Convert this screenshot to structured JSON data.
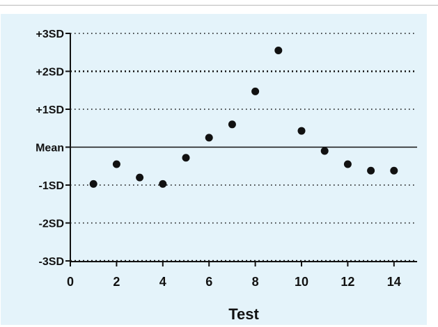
{
  "chart_data": {
    "type": "scatter",
    "title": "",
    "xlabel": "Test",
    "ylabel": "",
    "xlim": [
      0,
      15
    ],
    "ylim": [
      -3,
      3
    ],
    "x_ticks": [
      0,
      2,
      4,
      6,
      8,
      10,
      12,
      14
    ],
    "x_tick_labels": [
      "0",
      "2",
      "4",
      "6",
      "8",
      "10",
      "12",
      "14"
    ],
    "y_ticks": [
      3,
      2,
      1,
      0,
      -1,
      -2,
      -3
    ],
    "y_tick_labels": [
      "+3SD",
      "+2SD",
      "+1SD",
      "Mean",
      "-1SD",
      "-2SD",
      "-3SD"
    ],
    "reference_lines": [
      {
        "y": 3,
        "style": "dotted"
      },
      {
        "y": 2,
        "style": "dotted-bold"
      },
      {
        "y": 1,
        "style": "dotted"
      },
      {
        "y": 0,
        "style": "solid"
      },
      {
        "y": -1,
        "style": "dotted"
      },
      {
        "y": -2,
        "style": "dotted"
      },
      {
        "y": -3,
        "style": "dotted-bold"
      }
    ],
    "grid": false,
    "legend": "none",
    "colors": {
      "background": "#e4f3fa",
      "points": "#111111",
      "axis": "#111111"
    },
    "points": [
      {
        "x": 1,
        "y": -0.97
      },
      {
        "x": 2,
        "y": -0.45
      },
      {
        "x": 3,
        "y": -0.8
      },
      {
        "x": 4,
        "y": -0.97
      },
      {
        "x": 5,
        "y": -0.28
      },
      {
        "x": 6,
        "y": 0.25
      },
      {
        "x": 7,
        "y": 0.6
      },
      {
        "x": 8,
        "y": 1.47
      },
      {
        "x": 9,
        "y": 2.55
      },
      {
        "x": 10,
        "y": 0.43
      },
      {
        "x": 11,
        "y": -0.1
      },
      {
        "x": 12,
        "y": -0.45
      },
      {
        "x": 13,
        "y": -0.62
      },
      {
        "x": 14,
        "y": -0.62
      }
    ]
  }
}
